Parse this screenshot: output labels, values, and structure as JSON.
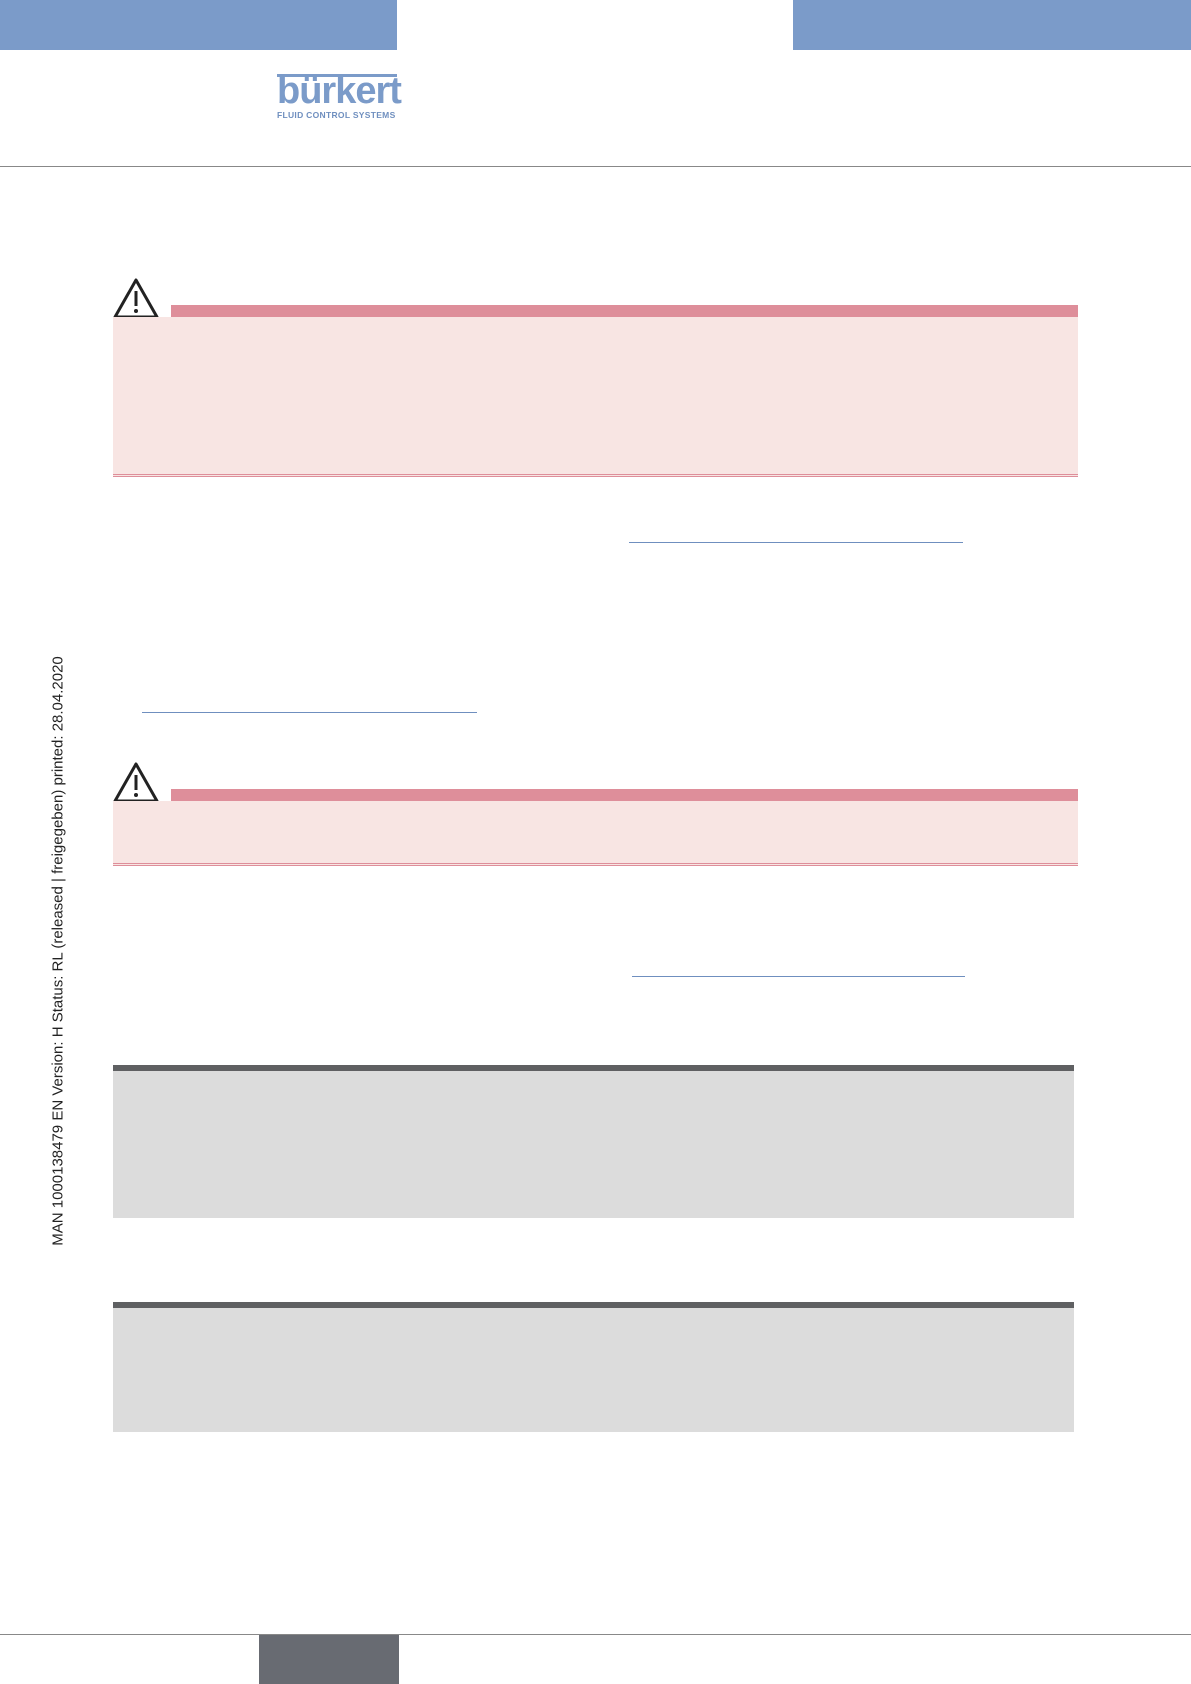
{
  "header": {
    "logo": "bürkert",
    "tagline": "FLUID CONTROL SYSTEMS"
  },
  "side_note": "MAN  1000138479  EN  Version: H Status: RL (released | freigegeben)  printed: 28.04.2020"
}
